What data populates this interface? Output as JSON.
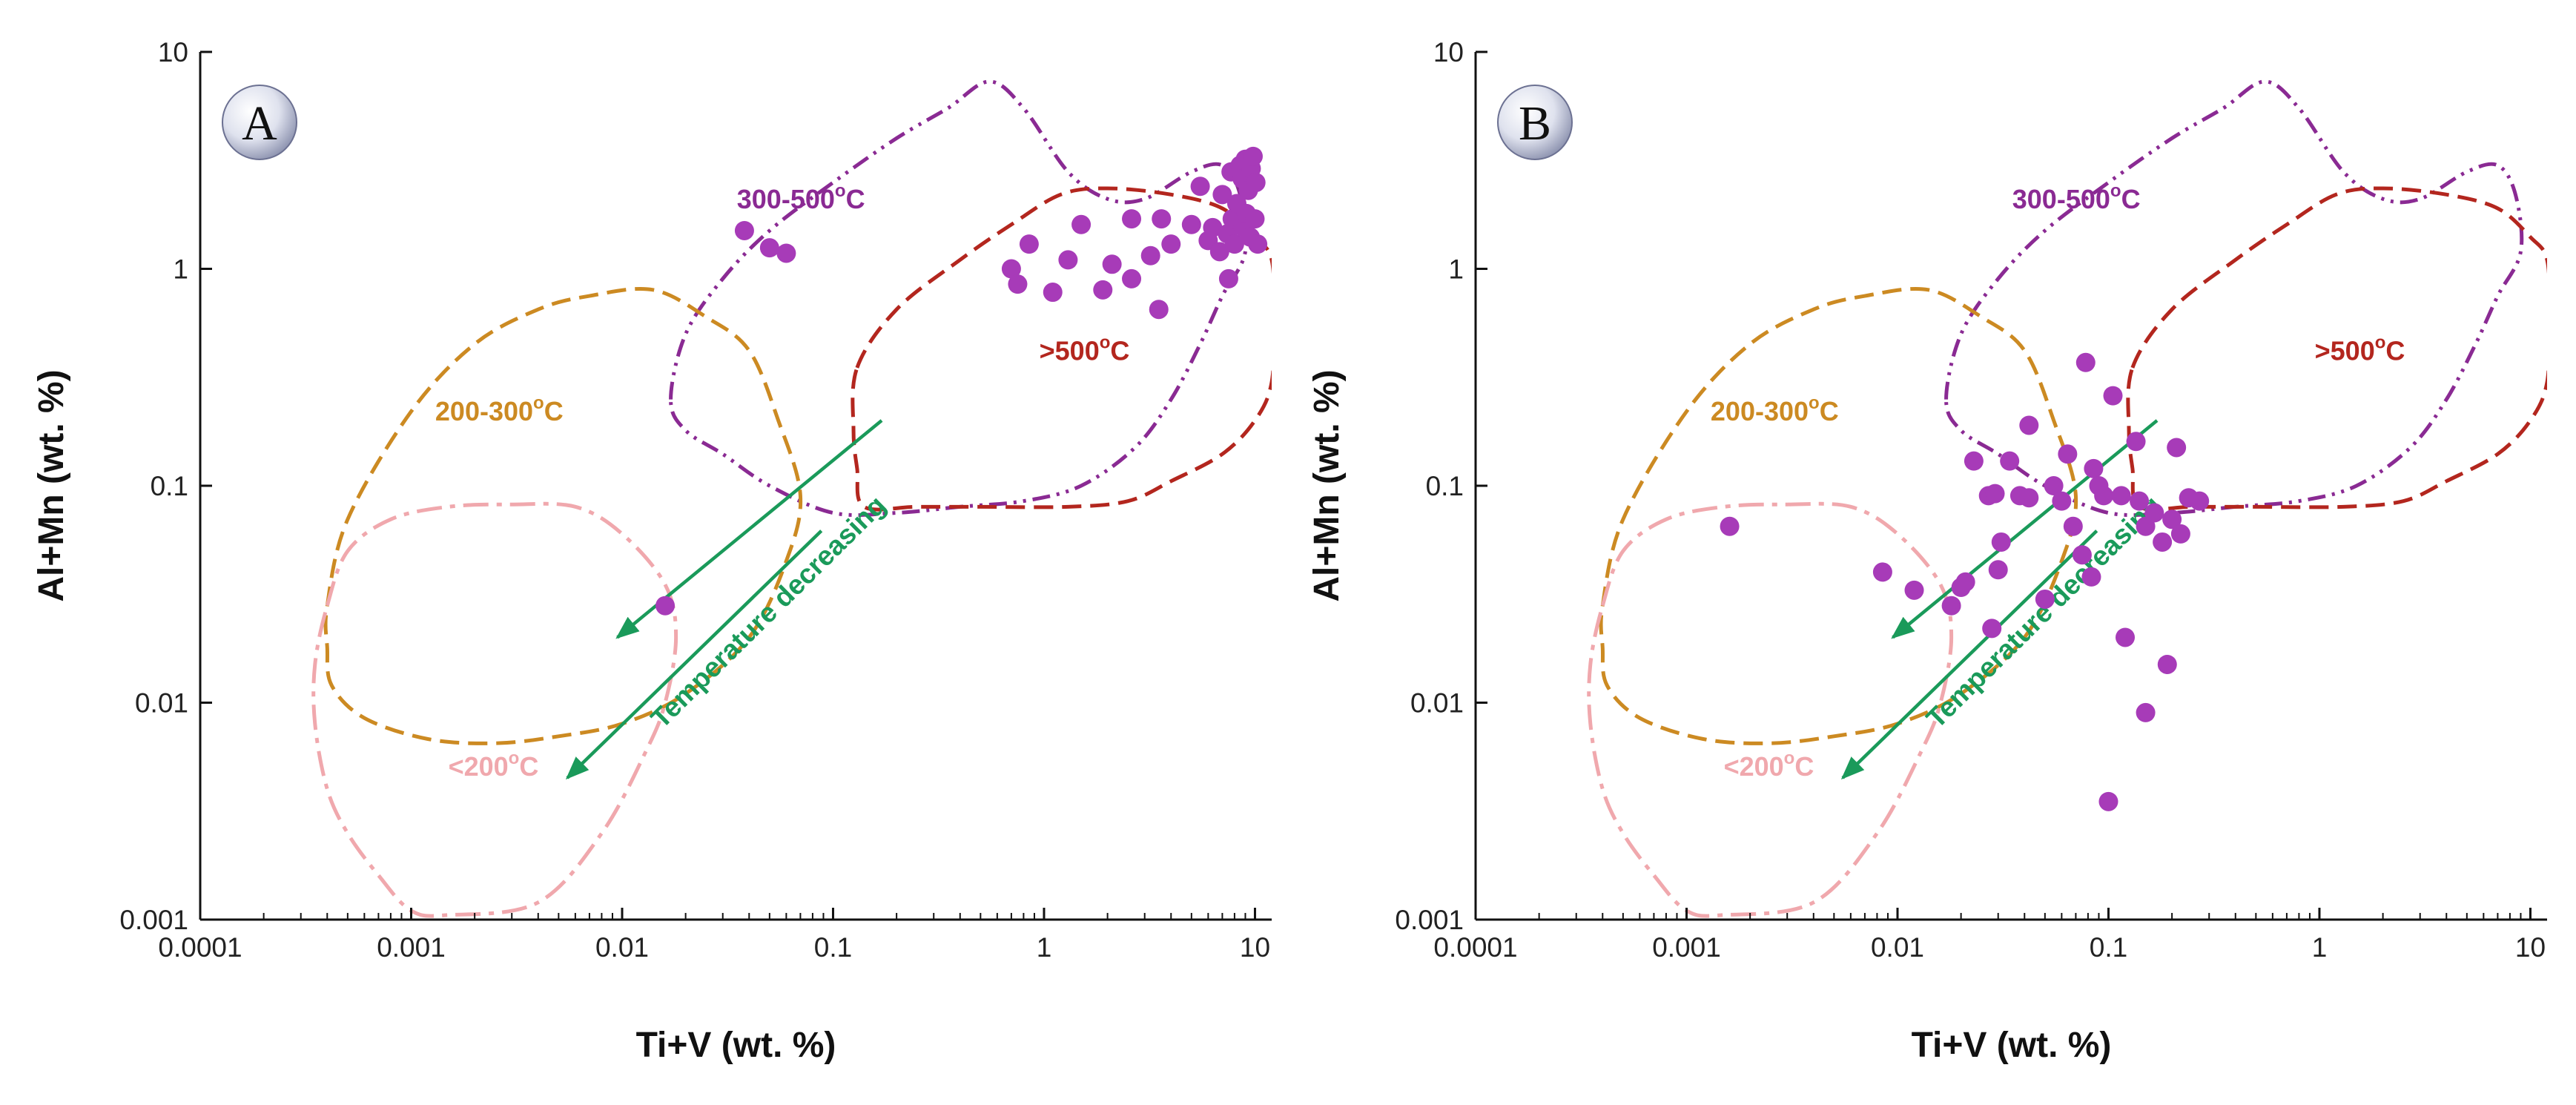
{
  "chart_data": [
    {
      "type": "scatter",
      "panel_label": "A",
      "xlabel": "Ti+V (wt. %)",
      "ylabel": "Al+Mn (wt. %)",
      "xlim": [
        0.0001,
        12
      ],
      "ylim": [
        0.001,
        10
      ],
      "xscale": "log",
      "yscale": "log",
      "x_ticks": [
        0.0001,
        0.001,
        0.01,
        0.1,
        1,
        10
      ],
      "x_tick_labels": [
        "0.0001",
        "0.001",
        "0.01",
        "0.1",
        "1",
        "10"
      ],
      "y_ticks": [
        0.001,
        0.01,
        0.1,
        1,
        10
      ],
      "y_tick_labels": [
        "0.001",
        "0.01",
        "0.1",
        "1",
        "10"
      ],
      "grid": false,
      "marker_color": "#a73bb8",
      "points": [
        [
          0.016,
          0.028
        ],
        [
          0.038,
          1.5
        ],
        [
          0.05,
          1.25
        ],
        [
          0.06,
          1.18
        ],
        [
          0.7,
          1.0
        ],
        [
          0.75,
          0.85
        ],
        [
          0.85,
          1.3
        ],
        [
          1.1,
          0.78
        ],
        [
          1.3,
          1.1
        ],
        [
          1.5,
          1.6
        ],
        [
          1.9,
          0.8
        ],
        [
          2.1,
          1.05
        ],
        [
          2.6,
          1.7
        ],
        [
          2.6,
          0.9
        ],
        [
          3.2,
          1.15
        ],
        [
          3.5,
          0.65
        ],
        [
          3.6,
          1.7
        ],
        [
          4.0,
          1.3
        ],
        [
          5.0,
          1.6
        ],
        [
          5.5,
          2.4
        ],
        [
          6.0,
          1.35
        ],
        [
          6.3,
          1.55
        ],
        [
          6.8,
          1.2
        ],
        [
          7.0,
          2.2
        ],
        [
          7.4,
          1.45
        ],
        [
          7.5,
          0.9
        ],
        [
          7.7,
          2.8
        ],
        [
          7.8,
          1.7
        ],
        [
          8.0,
          1.3
        ],
        [
          8.2,
          2.0
        ],
        [
          8.5,
          3.0
        ],
        [
          8.7,
          2.6
        ],
        [
          8.8,
          1.55
        ],
        [
          9.0,
          3.2
        ],
        [
          9.1,
          1.8
        ],
        [
          9.3,
          2.3
        ],
        [
          9.5,
          1.4
        ],
        [
          9.6,
          2.9
        ],
        [
          9.8,
          3.3
        ],
        [
          10.0,
          1.7
        ],
        [
          10.1,
          2.5
        ],
        [
          10.3,
          1.3
        ]
      ],
      "regions": [
        {
          "label": "300-500",
          "label_sup": "o",
          "label_suffix": "C",
          "color": "#8a2a93",
          "dash": "dashdot"
        },
        {
          "label": ">500",
          "label_sup": "o",
          "label_suffix": "C",
          "color": "#b3261e",
          "dash": "dashed"
        },
        {
          "label": "200-300",
          "label_sup": "o",
          "label_suffix": "C",
          "color": "#cc8a22",
          "dash": "dashed"
        },
        {
          "label": "<200",
          "label_sup": "o",
          "label_suffix": "C",
          "color": "#f0a8ad",
          "dash": "longdash"
        }
      ],
      "annotation": {
        "text": "Temperature decreasing",
        "color": "#1a9a5a"
      }
    },
    {
      "type": "scatter",
      "panel_label": "B",
      "xlabel": "Ti+V (wt. %)",
      "ylabel": "Al+Mn (wt. %)",
      "xlim": [
        0.0001,
        12
      ],
      "ylim": [
        0.001,
        10
      ],
      "xscale": "log",
      "yscale": "log",
      "x_ticks": [
        0.0001,
        0.001,
        0.01,
        0.1,
        1,
        10
      ],
      "x_tick_labels": [
        "0.0001",
        "0.001",
        "0.01",
        "0.1",
        "1",
        "10"
      ],
      "y_ticks": [
        0.001,
        0.01,
        0.1,
        1,
        10
      ],
      "y_tick_labels": [
        "0.001",
        "0.01",
        "0.1",
        "1",
        "10"
      ],
      "grid": false,
      "marker_color": "#a73bb8",
      "points": [
        [
          0.0016,
          0.065
        ],
        [
          0.0085,
          0.04
        ],
        [
          0.012,
          0.033
        ],
        [
          0.018,
          0.028
        ],
        [
          0.02,
          0.034
        ],
        [
          0.021,
          0.036
        ],
        [
          0.023,
          0.13
        ],
        [
          0.027,
          0.09
        ],
        [
          0.028,
          0.022
        ],
        [
          0.029,
          0.092
        ],
        [
          0.03,
          0.041
        ],
        [
          0.031,
          0.055
        ],
        [
          0.034,
          0.13
        ],
        [
          0.038,
          0.09
        ],
        [
          0.042,
          0.19
        ],
        [
          0.042,
          0.088
        ],
        [
          0.05,
          0.03
        ],
        [
          0.055,
          0.1
        ],
        [
          0.06,
          0.085
        ],
        [
          0.064,
          0.14
        ],
        [
          0.068,
          0.065
        ],
        [
          0.075,
          0.048
        ],
        [
          0.078,
          0.37
        ],
        [
          0.083,
          0.038
        ],
        [
          0.085,
          0.12
        ],
        [
          0.09,
          0.1
        ],
        [
          0.095,
          0.09
        ],
        [
          0.1,
          0.0035
        ],
        [
          0.105,
          0.26
        ],
        [
          0.115,
          0.09
        ],
        [
          0.12,
          0.02
        ],
        [
          0.135,
          0.16
        ],
        [
          0.14,
          0.085
        ],
        [
          0.15,
          0.065
        ],
        [
          0.15,
          0.009
        ],
        [
          0.165,
          0.075
        ],
        [
          0.18,
          0.055
        ],
        [
          0.19,
          0.015
        ],
        [
          0.2,
          0.07
        ],
        [
          0.21,
          0.15
        ],
        [
          0.22,
          0.06
        ],
        [
          0.24,
          0.088
        ],
        [
          0.27,
          0.085
        ]
      ],
      "regions": [
        {
          "label": "300-500",
          "label_sup": "o",
          "label_suffix": "C",
          "color": "#8a2a93",
          "dash": "dashdot"
        },
        {
          "label": ">500",
          "label_sup": "o",
          "label_suffix": "C",
          "color": "#b3261e",
          "dash": "dashed"
        },
        {
          "label": "200-300",
          "label_sup": "o",
          "label_suffix": "C",
          "color": "#cc8a22",
          "dash": "dashed"
        },
        {
          "label": "<200",
          "label_sup": "o",
          "label_suffix": "C",
          "color": "#f0a8ad",
          "dash": "longdash"
        }
      ],
      "annotation": {
        "text": "Temperature decreasing",
        "color": "#1a9a5a"
      }
    }
  ]
}
